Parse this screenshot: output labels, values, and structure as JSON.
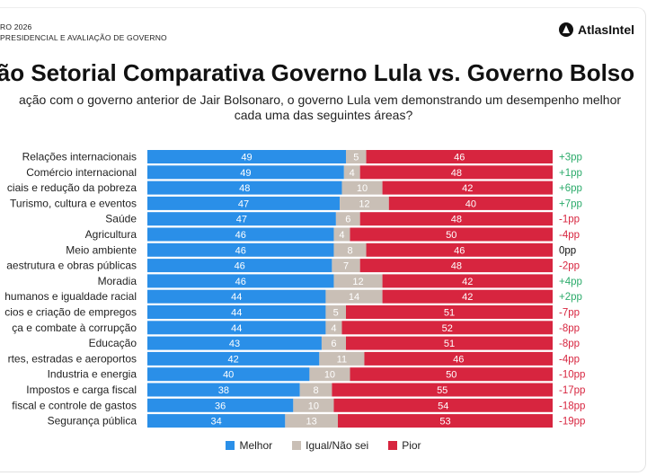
{
  "header": {
    "line1": "RO 2026",
    "line2": "PRESIDENCIAL E AVALIAÇÃO DE GOVERNO",
    "brand": "AtlasIntel"
  },
  "title": "ação Setorial Comparativa Governo Lula vs. Governo Bolso",
  "subtitle_line1": "ação com o governo anterior de Jair Bolsonaro, o governo Lula vem demonstrando um desempenho melhor",
  "subtitle_line2": "cada uma das seguintes áreas?",
  "colors": {
    "melhor": "#2a8fe8",
    "igual": "#c9bfb6",
    "pior": "#d7253f",
    "positive": "#2cab6b",
    "negative": "#d7253f",
    "neutral": "#111111"
  },
  "legend": {
    "melhor": "Melhor",
    "igual": "Igual/Não sei",
    "pior": "Pior"
  },
  "chart_data": {
    "type": "bar",
    "stacked": true,
    "orientation": "horizontal",
    "title": "ação Setorial Comparativa Governo Lula vs. Governo Bolso",
    "categories": [
      "Relações internacionais",
      "Comércio internacional",
      "ciais e redução da pobreza",
      "Turismo, cultura e eventos",
      "Saúde",
      "Agricultura",
      "Meio ambiente",
      "aestrutura e obras públicas",
      "Moradia",
      "humanos e igualdade racial",
      "cios e criação de empregos",
      "ça e combate à corrupção",
      "Educação",
      "rtes, estradas e aeroportos",
      "Industria e energia",
      "Impostos e carga fiscal",
      "fiscal e controle de gastos",
      "Segurança pública"
    ],
    "series": [
      {
        "name": "Melhor",
        "values": [
          49,
          49,
          48,
          47,
          47,
          46,
          46,
          46,
          46,
          44,
          44,
          44,
          43,
          42,
          40,
          38,
          36,
          34
        ]
      },
      {
        "name": "Igual/Não sei",
        "values": [
          5,
          4,
          10,
          12,
          6,
          4,
          8,
          7,
          12,
          14,
          5,
          4,
          6,
          11,
          10,
          8,
          10,
          13
        ]
      },
      {
        "name": "Pior",
        "values": [
          46,
          48,
          42,
          40,
          48,
          50,
          46,
          48,
          42,
          42,
          51,
          52,
          51,
          46,
          50,
          55,
          54,
          53
        ]
      }
    ],
    "net": [
      "+3pp",
      "+1pp",
      "+6pp",
      "+7pp",
      "-1pp",
      "-4pp",
      "0pp",
      "-2pp",
      "+4pp",
      "+2pp",
      "-7pp",
      "-8pp",
      "-8pp",
      "-4pp",
      "-10pp",
      "-17pp",
      "-18pp",
      "-19pp"
    ],
    "xlim": [
      0,
      100
    ],
    "legend_position": "bottom"
  }
}
